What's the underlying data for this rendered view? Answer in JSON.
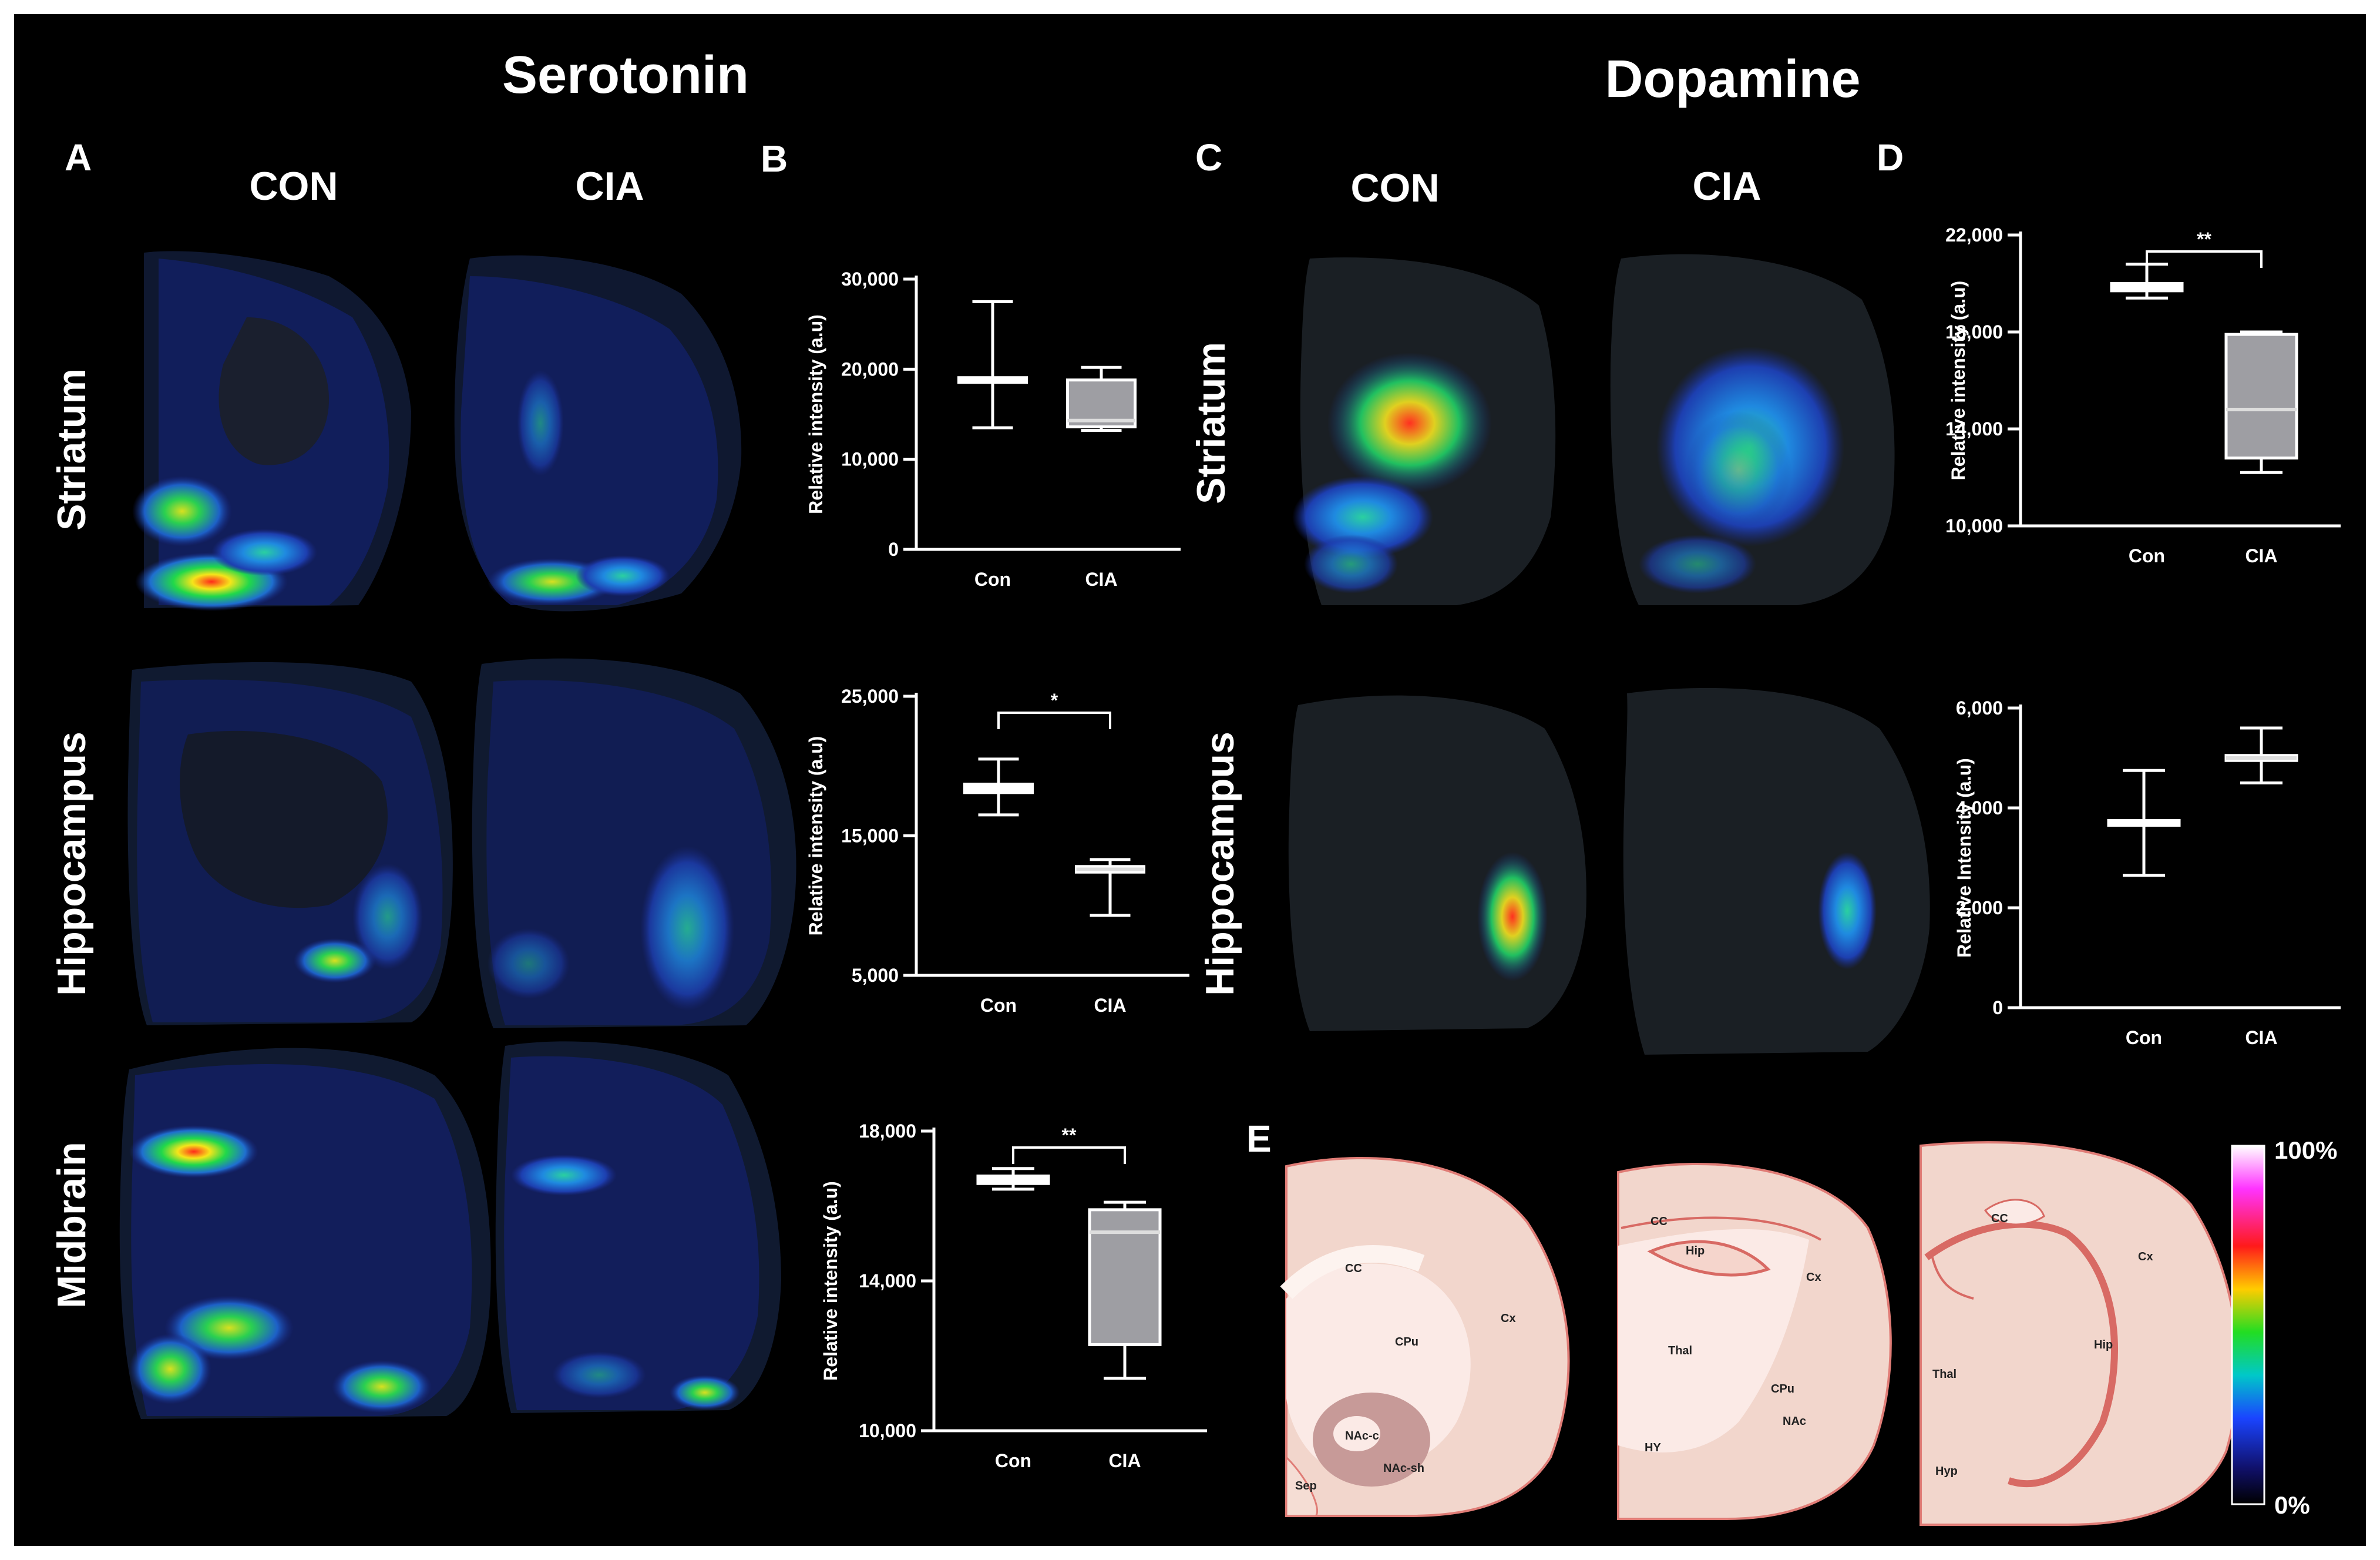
{
  "titles": {
    "serotonin": "Serotonin",
    "dopamine": "Dopamine"
  },
  "panel_letters": {
    "a": "A",
    "b": "B",
    "c": "C",
    "d": "D",
    "e": "E"
  },
  "groups": {
    "con": "CON",
    "cia": "CIA"
  },
  "regions": {
    "striatum": "Striatum",
    "hippocampus": "Hippocampus",
    "midbrain": "Midbrain"
  },
  "colorbar": {
    "max_label": "100%",
    "min_label": "0%"
  },
  "atlas_labels": {
    "striatum": [
      "CC",
      "CPu",
      "Cx",
      "NAc-c",
      "NAc-sh",
      "Sep"
    ],
    "hippocampus": [
      "CC",
      "Hip",
      "Cx",
      "Thal",
      "CPu",
      "NAc",
      "HY"
    ],
    "midbrain": [
      "CC",
      "Cx",
      "Hip",
      "Thal",
      "Hyp"
    ]
  },
  "colors": {
    "background": "#000000",
    "box_fill": "#9e9ea3",
    "con_box": "#ffffff"
  },
  "chart_data": [
    {
      "type": "box",
      "panel": "B",
      "region": "Striatum",
      "ylabel": "Relative intensity (a.u)",
      "ylim": [
        0,
        30000
      ],
      "yticks": [
        "0",
        "10,000",
        "20,000",
        "30,000"
      ],
      "ytick_values": [
        0,
        10000,
        20000,
        30000
      ],
      "categories": [
        "Con",
        "CIA"
      ],
      "boxes": [
        {
          "min": 13500,
          "q1": 18800,
          "median": 18800,
          "q3": 18800,
          "max": 27500
        },
        {
          "min": 13200,
          "q1": 13600,
          "median": 14300,
          "q3": 18800,
          "max": 20200
        }
      ],
      "significance": ""
    },
    {
      "type": "box",
      "panel": "B",
      "region": "Hippocampus",
      "ylabel": "Relative intensity (a.u)",
      "ylim": [
        5000,
        25000
      ],
      "yticks": [
        "5,000",
        "15,000",
        "25,000"
      ],
      "ytick_values": [
        5000,
        15000,
        25000
      ],
      "categories": [
        "Con",
        "CIA"
      ],
      "boxes": [
        {
          "min": 16500,
          "q1": 18100,
          "median": 18400,
          "q3": 18700,
          "max": 20500
        },
        {
          "min": 9300,
          "q1": 12400,
          "median": 12600,
          "q3": 12800,
          "max": 13300
        }
      ],
      "significance": "*"
    },
    {
      "type": "box",
      "panel": "B",
      "region": "Midbrain",
      "ylabel": "Relative intensity (a.u)",
      "ylim": [
        10000,
        18000
      ],
      "yticks": [
        "10,000",
        "14,000",
        "18,000"
      ],
      "ytick_values": [
        10000,
        14000,
        18000
      ],
      "categories": [
        "Con",
        "CIA"
      ],
      "boxes": [
        {
          "min": 16450,
          "q1": 16600,
          "median": 16700,
          "q3": 16800,
          "max": 17000
        },
        {
          "min": 11400,
          "q1": 12300,
          "median": 15300,
          "q3": 15900,
          "max": 16100
        }
      ],
      "significance": "**"
    },
    {
      "type": "box",
      "panel": "D",
      "region": "Striatum",
      "ylabel": "Relative intensity (a.u)",
      "ylim": [
        10000,
        22000
      ],
      "yticks": [
        "10,000",
        "14,000",
        "18,000",
        "22,000"
      ],
      "ytick_values": [
        10000,
        14000,
        18000,
        22000
      ],
      "categories": [
        "Con",
        "CIA"
      ],
      "boxes": [
        {
          "min": 19400,
          "q1": 19700,
          "median": 19900,
          "q3": 20000,
          "max": 20800
        },
        {
          "min": 12200,
          "q1": 12800,
          "median": 14800,
          "q3": 17900,
          "max": 18000
        }
      ],
      "significance": "**"
    },
    {
      "type": "box",
      "panel": "D",
      "region": "Hippocampus",
      "ylabel": "Relative Intensity (a.u)",
      "ylim": [
        0,
        6000
      ],
      "yticks": [
        "0",
        "2,000",
        "4,000",
        "6,000"
      ],
      "ytick_values": [
        0,
        2000,
        4000,
        6000
      ],
      "categories": [
        "Con",
        "CIA"
      ],
      "boxes": [
        {
          "min": 2650,
          "q1": 3700,
          "median": 3700,
          "q3": 3700,
          "max": 4750
        },
        {
          "min": 4500,
          "q1": 4950,
          "median": 5000,
          "q3": 5050,
          "max": 5600
        }
      ],
      "significance": ""
    }
  ]
}
